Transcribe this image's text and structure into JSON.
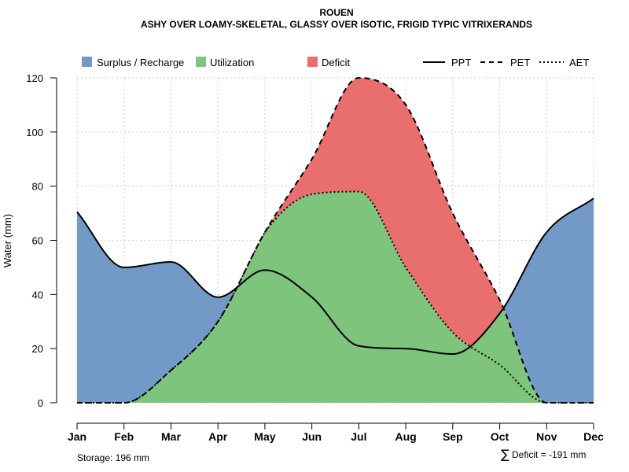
{
  "chart_data": {
    "type": "area",
    "title": "ROUEN",
    "subtitle": "ASHY OVER LOAMY-SKELETAL, GLASSY OVER ISOTIC, FRIGID TYPIC VITRIXERANDS",
    "ylabel": "Water (mm)",
    "xlabel": "",
    "ylim": [
      0,
      120
    ],
    "yticks": [
      "0",
      "20",
      "40",
      "60",
      "80",
      "100",
      "120"
    ],
    "grid": true,
    "categories": [
      "Jan",
      "Feb",
      "Mar",
      "Apr",
      "May",
      "Jun",
      "Jul",
      "Aug",
      "Sep",
      "Oct",
      "Nov",
      "Dec"
    ],
    "series": [
      {
        "name": "PPT",
        "style": "solid",
        "values": [
          70.5,
          50,
          52,
          39,
          49,
          39,
          21,
          20,
          18,
          33,
          63,
          75.5
        ]
      },
      {
        "name": "PET",
        "style": "dashed",
        "values": [
          0,
          0,
          12,
          30,
          63,
          90,
          120,
          110,
          70,
          38,
          0,
          0
        ]
      },
      {
        "name": "AET",
        "style": "dotted",
        "values": [
          0,
          0,
          12,
          30,
          63,
          77,
          78,
          50,
          26,
          14,
          0,
          0
        ]
      }
    ],
    "regions": [
      {
        "name": "Surplus / Recharge",
        "color": "#7399C6"
      },
      {
        "name": "Utilization",
        "color": "#7FC47C"
      },
      {
        "name": "Deficit",
        "color": "#E96E6E"
      }
    ],
    "legend_position": "top"
  },
  "footer": {
    "storage": "Storage: 196 mm",
    "deficit": "Deficit = -191 mm",
    "sigma": "∑"
  },
  "colors": {
    "surplus": "#7399C6",
    "utilization": "#7FC47C",
    "deficit": "#E96E6E",
    "line": "#000000"
  }
}
